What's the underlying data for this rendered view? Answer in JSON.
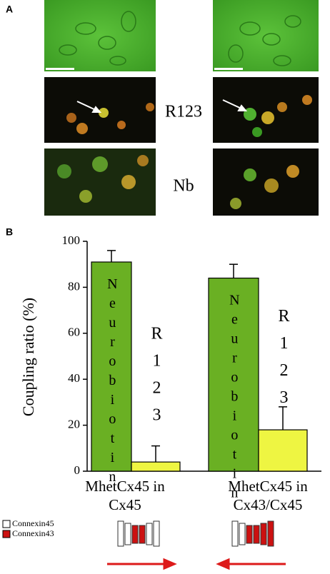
{
  "panel_a": {
    "label": "A",
    "row_labels": [
      "R123",
      "Nb"
    ]
  },
  "chart_data": {
    "type": "bar",
    "panel_label": "B",
    "ylabel": "Coupling ratio (%)",
    "categories": [
      "MhetCx45 in Cx45",
      "MhetCx45 in Cx43/Cx45"
    ],
    "series": [
      {
        "name": "Neurobiotin",
        "color": "#6ab023",
        "values": [
          91,
          84
        ],
        "errors": [
          5,
          6
        ]
      },
      {
        "name": "R123",
        "color": "#eef542",
        "values": [
          4,
          18
        ],
        "errors": [
          7,
          10
        ]
      }
    ],
    "ylim": [
      0,
      100
    ],
    "yticks": [
      0,
      20,
      40,
      60,
      80,
      100
    ]
  },
  "connexin_legend": [
    {
      "label": "Connexin45",
      "color": "#ffffff"
    },
    {
      "label": "Connexin43",
      "color": "#cc1111"
    }
  ]
}
